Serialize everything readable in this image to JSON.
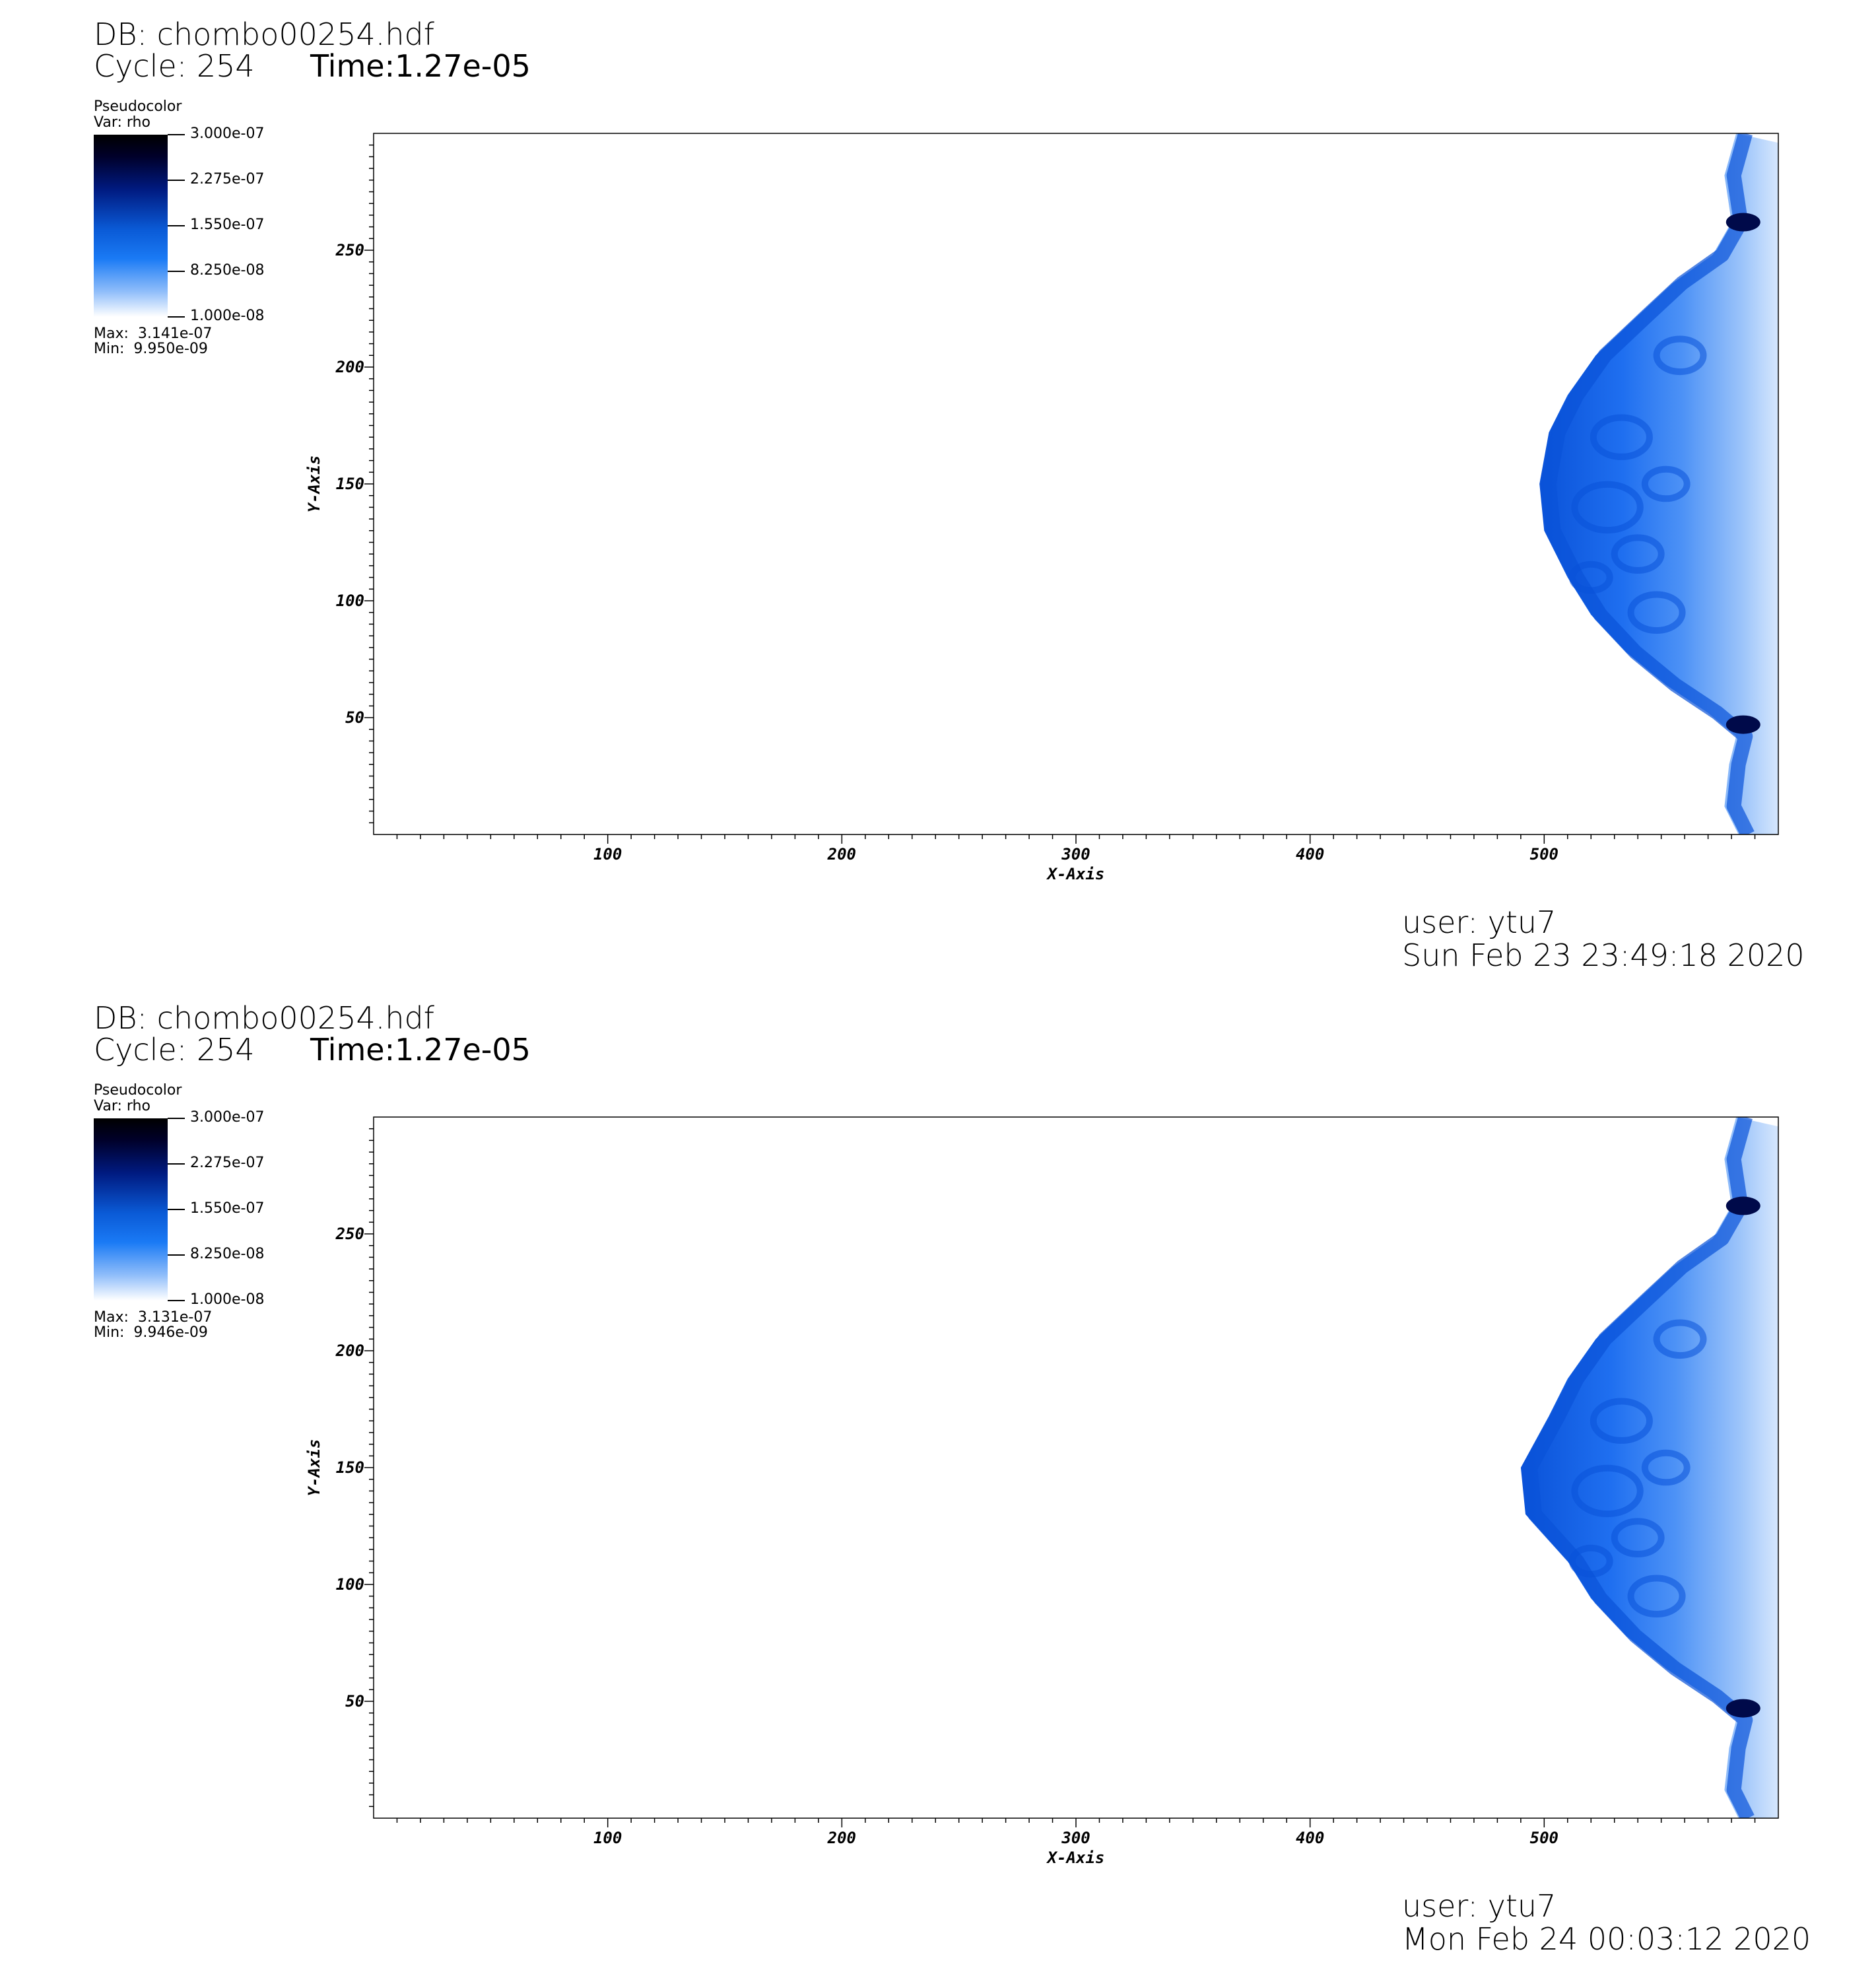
{
  "panels": [
    {
      "db": "DB: chombo00254.hdf",
      "cycle": "Cycle: 254",
      "time": "Time:1.27e-05",
      "legend": {
        "title": "Pseudocolor",
        "var": "Var: rho",
        "ticks": [
          "3.000e-07",
          "2.275e-07",
          "1.550e-07",
          "8.250e-08",
          "1.000e-08"
        ],
        "max": "Max:  3.141e-07",
        "min": "Min:  9.950e-09"
      },
      "user": "user: ytu7",
      "date": "Sun Feb 23 23:49:18 2020",
      "chart_data": {
        "type": "heatmap",
        "xlabel": "X-Axis",
        "ylabel": "Y-Axis",
        "xlim": [
          0,
          600
        ],
        "ylim": [
          0,
          300
        ],
        "x_ticks": [
          100,
          200,
          300,
          400,
          500
        ],
        "y_ticks": [
          50,
          100,
          150,
          200,
          250
        ],
        "front_apex_x": 498,
        "colors": [
          "#0a52d8",
          "#1f6ff0",
          "#4d92f6",
          "#9cc4fa",
          "#d6e7fd",
          "#000a4a"
        ]
      }
    },
    {
      "db": "DB: chombo00254.hdf",
      "cycle": "Cycle: 254",
      "time": "Time:1.27e-05",
      "legend": {
        "title": "Pseudocolor",
        "var": "Var: rho",
        "ticks": [
          "3.000e-07",
          "2.275e-07",
          "1.550e-07",
          "8.250e-08",
          "1.000e-08"
        ],
        "max": "Max:  3.131e-07",
        "min": "Min:  9.946e-09"
      },
      "user": "user: ytu7",
      "date": "Mon Feb 24 00:03:12 2020",
      "chart_data": {
        "type": "heatmap",
        "xlabel": "X-Axis",
        "ylabel": "Y-Axis",
        "xlim": [
          0,
          600
        ],
        "ylim": [
          0,
          300
        ],
        "x_ticks": [
          100,
          200,
          300,
          400,
          500
        ],
        "y_ticks": [
          50,
          100,
          150,
          200,
          250
        ],
        "front_apex_x": 490,
        "colors": [
          "#0a52d8",
          "#1f6ff0",
          "#4d92f6",
          "#9cc4fa",
          "#d6e7fd",
          "#000a4a"
        ]
      }
    }
  ]
}
